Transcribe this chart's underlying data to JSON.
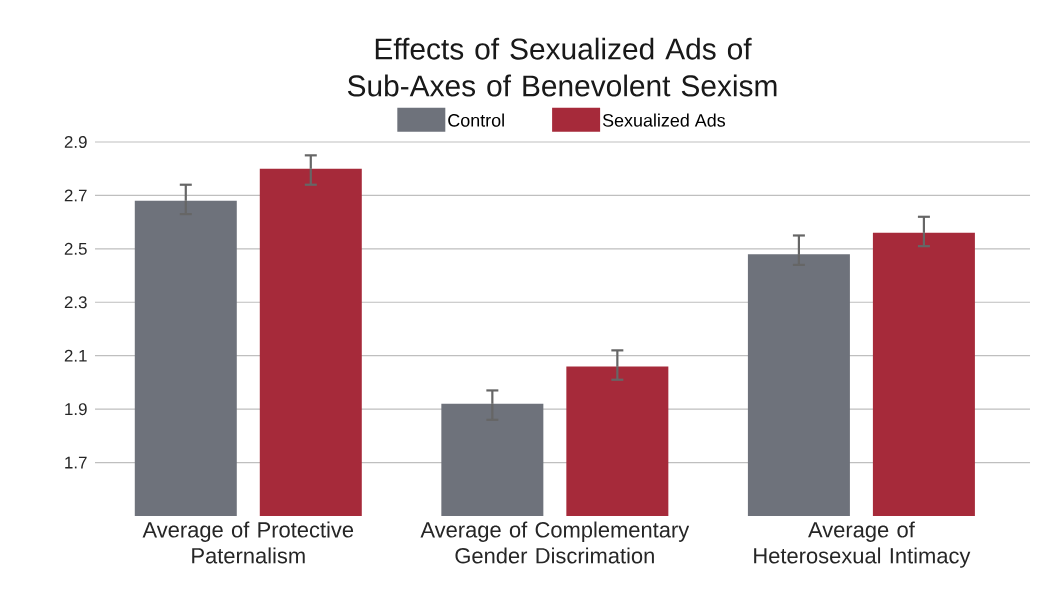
{
  "chart_data": {
    "type": "bar",
    "title": "Effects of Sexualized Ads of Sub-Axes of Benevolent Sexism",
    "categories": [
      "Average of Protective Paternalism",
      "Average of Complementary Gender Discrimation",
      "Average of Heterosexual Intimacy"
    ],
    "series": [
      {
        "name": "Control",
        "color": "#6e727b",
        "values": [
          2.68,
          1.92,
          2.48
        ],
        "errors": [
          [
            2.63,
            2.74
          ],
          [
            1.86,
            1.97
          ],
          [
            2.44,
            2.55
          ]
        ]
      },
      {
        "name": "Sexualized Ads",
        "color": "#a62a3a",
        "values": [
          2.8,
          2.06,
          2.56
        ],
        "errors": [
          [
            2.74,
            2.85
          ],
          [
            2.01,
            2.12
          ],
          [
            2.51,
            2.62
          ]
        ]
      }
    ],
    "ylim": [
      1.5,
      2.9
    ],
    "yticks": [
      1.7,
      1.9,
      2.1,
      2.3,
      2.5,
      2.7,
      2.9
    ],
    "grid": "y",
    "legend": "top"
  }
}
